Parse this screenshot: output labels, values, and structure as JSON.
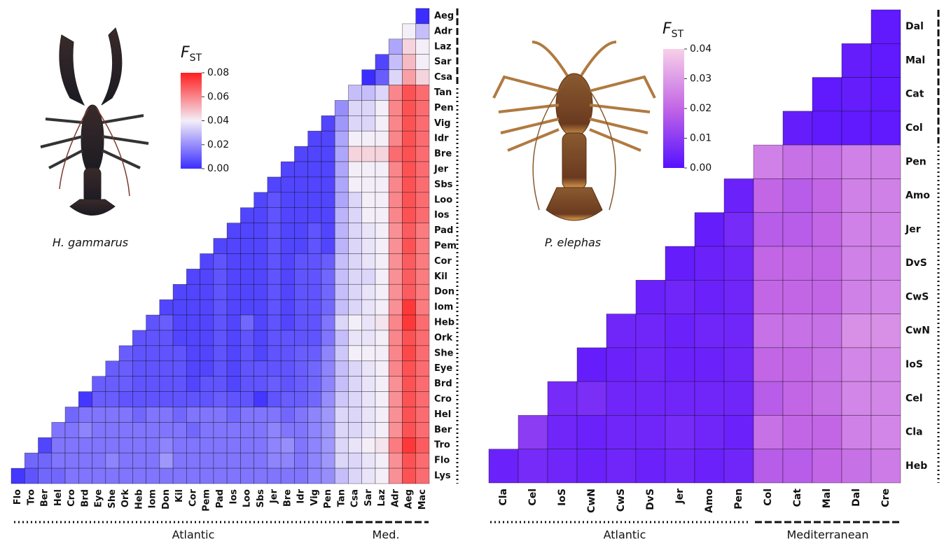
{
  "chart_data": [
    {
      "type": "heatmap",
      "x_categories": [
        "Flo",
        "Tro",
        "Ber",
        "Hel",
        "Cro",
        "Brd",
        "Eye",
        "She",
        "Ork",
        "Heb",
        "Iom",
        "Don",
        "Kil",
        "Cor",
        "Pem",
        "Pad",
        "Ios",
        "Loo",
        "Sbs",
        "Jer",
        "Bre",
        "Idr",
        "Vig",
        "Pen",
        "Tan",
        "Csa",
        "Sar",
        "Laz",
        "Adr",
        "Aeg",
        "Mac"
      ],
      "y_categories": [
        "Aeg",
        "Adr",
        "Laz",
        "Sar",
        "Csa",
        "Tan",
        "Pen",
        "Vig",
        "Idr",
        "Bre",
        "Jer",
        "Sbs",
        "Loo",
        "Ios",
        "Pad",
        "Pem",
        "Cor",
        "Kil",
        "Don",
        "Iom",
        "Heb",
        "Ork",
        "She",
        "Eye",
        "Brd",
        "Cro",
        "Hel",
        "Ber",
        "Tro",
        "Flo",
        "Lys"
      ],
      "values": [
        [
          0.0
        ],
        [
          0.04,
          0.03
        ],
        [
          0.025,
          0.045,
          0.04
        ],
        [
          0.005,
          0.03,
          0.05,
          0.04
        ],
        [
          0.0,
          0.01,
          0.035,
          0.055,
          0.045
        ],
        [
          0.03,
          0.03,
          0.035,
          0.06,
          0.07,
          0.065
        ],
        [
          0.02,
          0.035,
          0.035,
          0.04,
          0.06,
          0.07,
          0.065
        ],
        [
          0.005,
          0.022,
          0.035,
          0.035,
          0.04,
          0.06,
          0.07,
          0.065
        ],
        [
          0.005,
          0.005,
          0.025,
          0.04,
          0.04,
          0.04,
          0.06,
          0.07,
          0.065
        ],
        [
          0.005,
          0.005,
          0.005,
          0.025,
          0.045,
          0.045,
          0.045,
          0.065,
          0.07,
          0.065
        ],
        [
          0.005,
          0.005,
          0.005,
          0.005,
          0.025,
          0.04,
          0.04,
          0.04,
          0.06,
          0.07,
          0.065
        ],
        [
          0.005,
          0.005,
          0.005,
          0.005,
          0.005,
          0.025,
          0.04,
          0.04,
          0.04,
          0.06,
          0.07,
          0.065
        ],
        [
          0.005,
          0.008,
          0.005,
          0.005,
          0.005,
          0.005,
          0.025,
          0.035,
          0.04,
          0.04,
          0.06,
          0.07,
          0.065
        ],
        [
          0.005,
          0.005,
          0.008,
          0.005,
          0.005,
          0.005,
          0.005,
          0.028,
          0.035,
          0.04,
          0.04,
          0.06,
          0.07,
          0.065
        ],
        [
          0.005,
          0.005,
          0.005,
          0.008,
          0.005,
          0.005,
          0.008,
          0.005,
          0.028,
          0.035,
          0.038,
          0.04,
          0.058,
          0.068,
          0.062
        ],
        [
          0.005,
          0.005,
          0.005,
          0.005,
          0.008,
          0.005,
          0.005,
          0.008,
          0.005,
          0.028,
          0.035,
          0.038,
          0.04,
          0.058,
          0.07,
          0.062
        ],
        [
          0.005,
          0.008,
          0.005,
          0.005,
          0.005,
          0.008,
          0.005,
          0.008,
          0.008,
          0.01,
          0.03,
          0.035,
          0.038,
          0.04,
          0.058,
          0.068,
          0.062
        ],
        [
          0.005,
          0.005,
          0.008,
          0.005,
          0.005,
          0.005,
          0.008,
          0.005,
          0.008,
          0.008,
          0.012,
          0.03,
          0.035,
          0.035,
          0.04,
          0.058,
          0.068,
          0.062
        ],
        [
          0.005,
          0.005,
          0.005,
          0.008,
          0.005,
          0.005,
          0.005,
          0.008,
          0.005,
          0.008,
          0.008,
          0.012,
          0.03,
          0.035,
          0.038,
          0.04,
          0.058,
          0.068,
          0.062
        ],
        [
          0.005,
          0.005,
          0.005,
          0.005,
          0.008,
          0.005,
          0.005,
          0.005,
          0.008,
          0.005,
          0.008,
          0.008,
          0.012,
          0.03,
          0.035,
          0.038,
          0.04,
          0.058,
          0.075,
          0.062
        ],
        [
          0.008,
          0.01,
          0.005,
          0.005,
          0.005,
          0.008,
          0.005,
          0.012,
          0.005,
          0.008,
          0.005,
          0.008,
          0.008,
          0.015,
          0.035,
          0.04,
          0.038,
          0.042,
          0.06,
          0.075,
          0.065
        ],
        [
          0.008,
          0.008,
          0.008,
          0.005,
          0.005,
          0.005,
          0.008,
          0.005,
          0.008,
          0.005,
          0.008,
          0.008,
          0.008,
          0.008,
          0.015,
          0.03,
          0.038,
          0.038,
          0.04,
          0.06,
          0.07,
          0.065
        ],
        [
          0.01,
          0.008,
          0.008,
          0.008,
          0.008,
          0.005,
          0.005,
          0.008,
          0.005,
          0.008,
          0.005,
          0.008,
          0.008,
          0.01,
          0.01,
          0.018,
          0.032,
          0.04,
          0.04,
          0.04,
          0.06,
          0.072,
          0.065
        ],
        [
          0.01,
          0.01,
          0.008,
          0.008,
          0.008,
          0.008,
          0.005,
          0.005,
          0.008,
          0.005,
          0.008,
          0.008,
          0.008,
          0.008,
          0.01,
          0.012,
          0.018,
          0.03,
          0.035,
          0.038,
          0.04,
          0.06,
          0.07,
          0.065
        ],
        [
          0.01,
          0.01,
          0.01,
          0.008,
          0.008,
          0.008,
          0.008,
          0.005,
          0.008,
          0.008,
          0.005,
          0.008,
          0.008,
          0.01,
          0.008,
          0.01,
          0.012,
          0.018,
          0.03,
          0.035,
          0.038,
          0.04,
          0.058,
          0.07,
          0.065
        ],
        [
          0.002,
          0.01,
          0.01,
          0.008,
          0.008,
          0.008,
          0.008,
          0.008,
          0.008,
          0.008,
          0.01,
          0.008,
          0.008,
          0.002,
          0.008,
          0.01,
          0.01,
          0.012,
          0.02,
          0.032,
          0.035,
          0.038,
          0.04,
          0.058,
          0.07,
          0.065
        ],
        [
          0.012,
          0.015,
          0.015,
          0.015,
          0.015,
          0.012,
          0.015,
          0.015,
          0.012,
          0.015,
          0.015,
          0.015,
          0.012,
          0.015,
          0.015,
          0.015,
          0.012,
          0.015,
          0.018,
          0.022,
          0.035,
          0.035,
          0.038,
          0.04,
          0.058,
          0.07,
          0.065
        ],
        [
          0.015,
          0.015,
          0.018,
          0.015,
          0.015,
          0.015,
          0.015,
          0.015,
          0.015,
          0.015,
          0.012,
          0.015,
          0.015,
          0.015,
          0.015,
          0.015,
          0.018,
          0.015,
          0.015,
          0.018,
          0.022,
          0.035,
          0.035,
          0.038,
          0.04,
          0.058,
          0.07,
          0.065
        ],
        [
          0.005,
          0.015,
          0.015,
          0.015,
          0.015,
          0.015,
          0.015,
          0.015,
          0.015,
          0.018,
          0.015,
          0.015,
          0.015,
          0.015,
          0.015,
          0.015,
          0.015,
          0.018,
          0.02,
          0.015,
          0.018,
          0.022,
          0.035,
          0.038,
          0.04,
          0.042,
          0.062,
          0.075,
          0.068
        ],
        [
          0.012,
          0.012,
          0.015,
          0.015,
          0.015,
          0.015,
          0.018,
          0.015,
          0.015,
          0.015,
          0.022,
          0.015,
          0.015,
          0.015,
          0.015,
          0.015,
          0.015,
          0.015,
          0.018,
          0.018,
          0.015,
          0.018,
          0.022,
          0.035,
          0.035,
          0.038,
          0.04,
          0.058,
          0.07,
          0.065
        ],
        [
          0.002,
          0.008,
          0.012,
          0.012,
          0.015,
          0.015,
          0.015,
          0.015,
          0.015,
          0.015,
          0.015,
          0.015,
          0.015,
          0.015,
          0.015,
          0.015,
          0.015,
          0.015,
          0.015,
          0.015,
          0.015,
          0.015,
          0.018,
          0.02,
          0.03,
          0.035,
          0.038,
          0.04,
          0.058,
          0.07,
          0.065
        ]
      ],
      "vlim": [
        0,
        0.08
      ],
      "colorscale": [
        "#3b2dff",
        "#f3eef8",
        "#ff1e1e"
      ],
      "colorbar_ticks": [
        {
          "value": 0,
          "label": "0.00"
        },
        {
          "value": 0.02,
          "label": "0.02"
        },
        {
          "value": 0.04,
          "label": "0.04"
        },
        {
          "value": 0.06,
          "label": "0.06"
        },
        {
          "value": 0.08,
          "label": "0.08"
        }
      ],
      "colorbar_title": "F",
      "colorbar_title_sub": "ST",
      "species": "H. gammarus",
      "group_labels": [
        "Atlantic",
        "Med."
      ]
    },
    {
      "type": "heatmap",
      "x_categories": [
        "Cla",
        "Cel",
        "IoS",
        "CwN",
        "CwS",
        "DvS",
        "Jer",
        "Amo",
        "Pen",
        "Col",
        "Cat",
        "Mal",
        "Dal",
        "Cre"
      ],
      "y_categories": [
        "Dal",
        "Mal",
        "Cat",
        "Col",
        "Pen",
        "Amo",
        "Jer",
        "DvS",
        "CwS",
        "CwN",
        "IoS",
        "Cel",
        "Cla",
        "Heb"
      ],
      "values": [
        [
          0.002
        ],
        [
          0.003,
          0.002
        ],
        [
          0.002,
          0.003,
          0.002
        ],
        [
          0.003,
          0.002,
          0.002,
          0.002
        ],
        [
          0.025,
          0.022,
          0.022,
          0.025,
          0.025
        ],
        [
          0.004,
          0.02,
          0.018,
          0.02,
          0.025,
          0.025
        ],
        [
          0.003,
          0.006,
          0.018,
          0.018,
          0.02,
          0.025,
          0.025
        ],
        [
          0.003,
          0.004,
          0.005,
          0.02,
          0.02,
          0.02,
          0.025,
          0.025
        ],
        [
          0.004,
          0.005,
          0.004,
          0.005,
          0.02,
          0.02,
          0.02,
          0.025,
          0.026
        ],
        [
          0.005,
          0.005,
          0.004,
          0.005,
          0.005,
          0.022,
          0.022,
          0.022,
          0.028,
          0.028
        ],
        [
          0.003,
          0.004,
          0.005,
          0.004,
          0.004,
          0.005,
          0.02,
          0.02,
          0.022,
          0.026,
          0.026
        ],
        [
          0.006,
          0.007,
          0.005,
          0.005,
          0.005,
          0.005,
          0.005,
          0.018,
          0.02,
          0.022,
          0.026,
          0.026
        ],
        [
          0.01,
          0.005,
          0.004,
          0.005,
          0.005,
          0.006,
          0.005,
          0.004,
          0.022,
          0.02,
          0.02,
          0.025,
          0.026
        ],
        [
          0.004,
          0.006,
          0.005,
          0.004,
          0.005,
          0.004,
          0.005,
          0.004,
          0.005,
          0.018,
          0.018,
          0.02,
          0.022,
          0.024
        ]
      ],
      "vlim": [
        0,
        0.04
      ],
      "colorscale": [
        "#5511ff",
        "#c266e6",
        "#f8d0e8"
      ],
      "colorbar_ticks": [
        {
          "value": 0,
          "label": "0.00"
        },
        {
          "value": 0.01,
          "label": "0.01"
        },
        {
          "value": 0.02,
          "label": "0.02"
        },
        {
          "value": 0.03,
          "label": "0.03"
        },
        {
          "value": 0.04,
          "label": "0.04"
        }
      ],
      "colorbar_title": "F",
      "colorbar_title_sub": "ST",
      "species": "P. elephas",
      "group_labels": [
        "Atlantic",
        "Mediterranean"
      ]
    }
  ]
}
